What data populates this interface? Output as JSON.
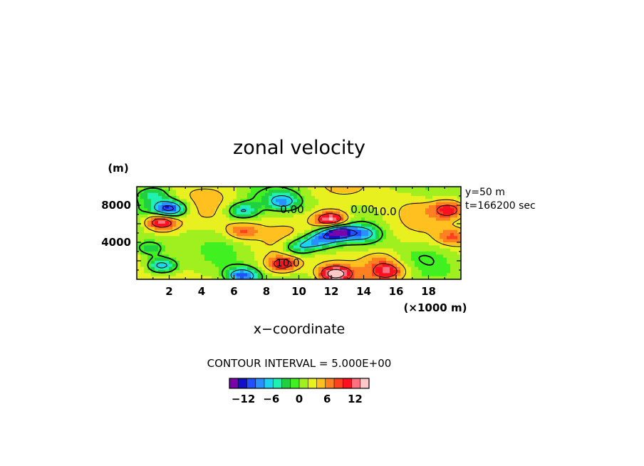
{
  "chart_data": {
    "type": "heatmap",
    "title": "zonal velocity",
    "xlabel": "x−coordinate",
    "x_unit": "(×1000 m)",
    "y_unit": "(m)",
    "xlim": [
      0,
      20
    ],
    "ylim": [
      0,
      10000
    ],
    "x_ticks": [
      "2",
      "4",
      "6",
      "8",
      "10",
      "12",
      "14",
      "16",
      "18"
    ],
    "y_ticks": [
      "4000",
      "8000"
    ],
    "annotations": {
      "y_slice": "y=50 m",
      "time": "t=166200 sec"
    },
    "contour_interval_text": "CONTOUR INTERVAL = 5.000E+00",
    "contour_labels": [
      "0.00",
      "0.00",
      "10.0",
      "10.0"
    ],
    "colorbar": {
      "min": -15,
      "max": 15,
      "step": 2,
      "tick_labels": [
        "−12",
        "−6",
        "0",
        "6",
        "12"
      ],
      "colors": [
        "#7a00aa",
        "#1010c8",
        "#2050ff",
        "#2a90ff",
        "#20d0f0",
        "#20f0b0",
        "#20d040",
        "#40f020",
        "#a0f020",
        "#e8f020",
        "#ffc020",
        "#ff8020",
        "#ff4020",
        "#ff1020",
        "#ff7080",
        "#ffc8c8"
      ]
    },
    "features": [
      {
        "x": 1.5,
        "y": 6200,
        "value": 16
      },
      {
        "x": 19.3,
        "y": 7500,
        "value": 12
      },
      {
        "x": 19.5,
        "y": 4500,
        "value": 9
      },
      {
        "x": 12,
        "y": 6400,
        "value": 18
      },
      {
        "x": 12.4,
        "y": 5100,
        "value": -13
      },
      {
        "x": 11.2,
        "y": 4200,
        "value": -7
      },
      {
        "x": 10,
        "y": 3500,
        "value": -6
      },
      {
        "x": 14,
        "y": 4900,
        "value": -5
      },
      {
        "x": 2,
        "y": 7600,
        "value": -12
      },
      {
        "x": 6.5,
        "y": 7400,
        "value": -6
      },
      {
        "x": 9,
        "y": 8400,
        "value": -6
      },
      {
        "x": 1,
        "y": 9200,
        "value": -3
      },
      {
        "x": 9,
        "y": 1600,
        "value": 12
      },
      {
        "x": 12.2,
        "y": 600,
        "value": 17
      },
      {
        "x": 15.5,
        "y": 900,
        "value": 12
      },
      {
        "x": 6.5,
        "y": 5200,
        "value": 9
      },
      {
        "x": 6.5,
        "y": 350,
        "value": -10
      },
      {
        "x": 1.5,
        "y": 1500,
        "value": -9
      },
      {
        "x": 0.8,
        "y": 3300,
        "value": -4
      },
      {
        "x": 15,
        "y": 2200,
        "value": 6
      },
      {
        "x": 17.5,
        "y": 2500,
        "value": 2
      },
      {
        "x": 18,
        "y": 9400,
        "value": 1
      },
      {
        "x": 7,
        "y": 9000,
        "value": 2
      }
    ]
  }
}
